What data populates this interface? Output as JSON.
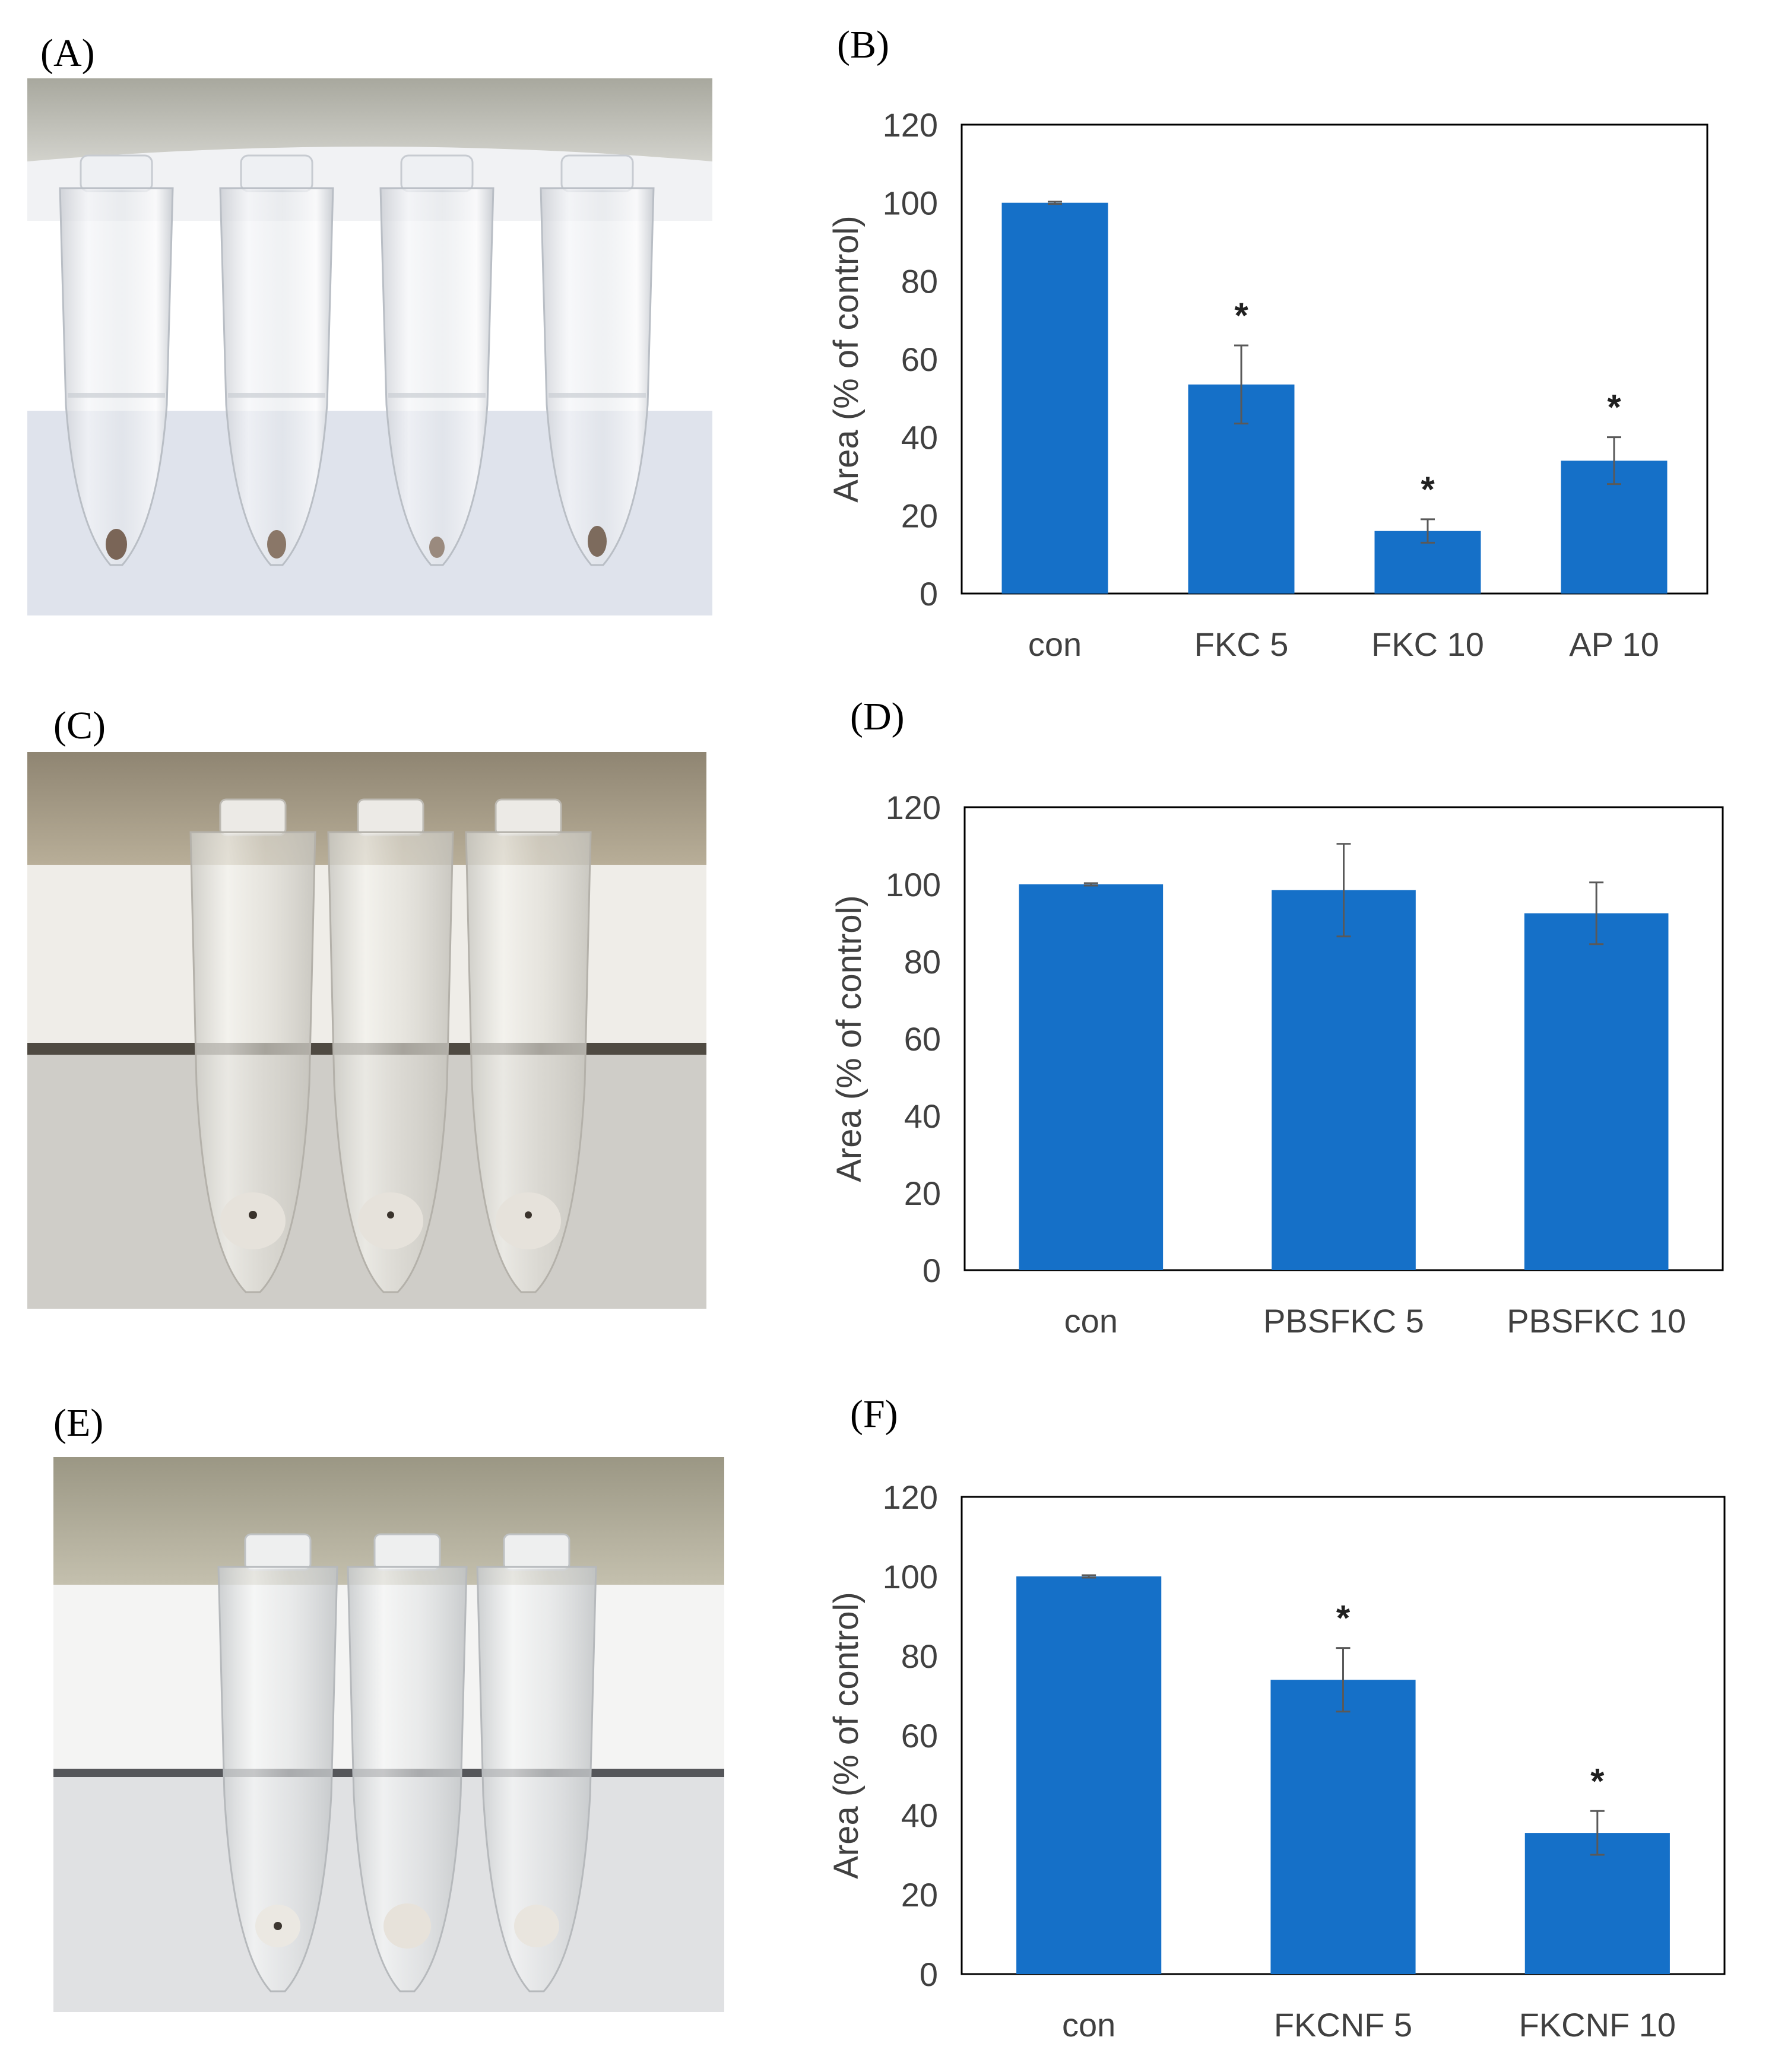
{
  "panels": [
    {
      "letter": "(A)",
      "kind": "photo",
      "tube_count": 4
    },
    {
      "letter": "(B)",
      "kind": "chart",
      "chart_index": 0
    },
    {
      "letter": "(C)",
      "kind": "photo",
      "tube_count": 3
    },
    {
      "letter": "(D)",
      "kind": "chart",
      "chart_index": 1
    },
    {
      "letter": "(E)",
      "kind": "photo",
      "tube_count": 3
    },
    {
      "letter": "(F)",
      "kind": "chart",
      "chart_index": 2
    }
  ],
  "colors": {
    "bar": "#1570C8",
    "error": "#595959",
    "axis": "#000000",
    "text": "#404040"
  },
  "chart_data": [
    {
      "type": "bar",
      "categories": [
        "con",
        "FKC 5",
        "FKC 10",
        "AP 10"
      ],
      "values": [
        100,
        53.5,
        16,
        34
      ],
      "errors": [
        0.3,
        10,
        3,
        6
      ],
      "significance": [
        "",
        "*",
        "*",
        "*"
      ],
      "ylabel": "Area (% of control)",
      "ylim": [
        0,
        120
      ],
      "yticks": [
        0,
        20,
        40,
        60,
        80,
        100,
        120
      ],
      "grid": false,
      "legend": "none"
    },
    {
      "type": "bar",
      "categories": [
        "con",
        "PBSFKC 5",
        "PBSFKC 10"
      ],
      "values": [
        100,
        98.5,
        92.5
      ],
      "errors": [
        0.3,
        12,
        8
      ],
      "significance": [
        "",
        "",
        ""
      ],
      "ylabel": "Area (% of control)",
      "ylim": [
        0,
        120
      ],
      "yticks": [
        0,
        20,
        40,
        60,
        80,
        100,
        120
      ],
      "grid": false,
      "legend": "none"
    },
    {
      "type": "bar",
      "categories": [
        "con",
        "FKCNF 5",
        "FKCNF 10"
      ],
      "values": [
        100,
        74,
        35.5
      ],
      "errors": [
        0.3,
        8,
        5.5
      ],
      "significance": [
        "",
        "*",
        "*"
      ],
      "ylabel": "Area (% of control)",
      "ylim": [
        0,
        120
      ],
      "yticks": [
        0,
        20,
        40,
        60,
        80,
        100,
        120
      ],
      "grid": false,
      "legend": "none"
    }
  ]
}
